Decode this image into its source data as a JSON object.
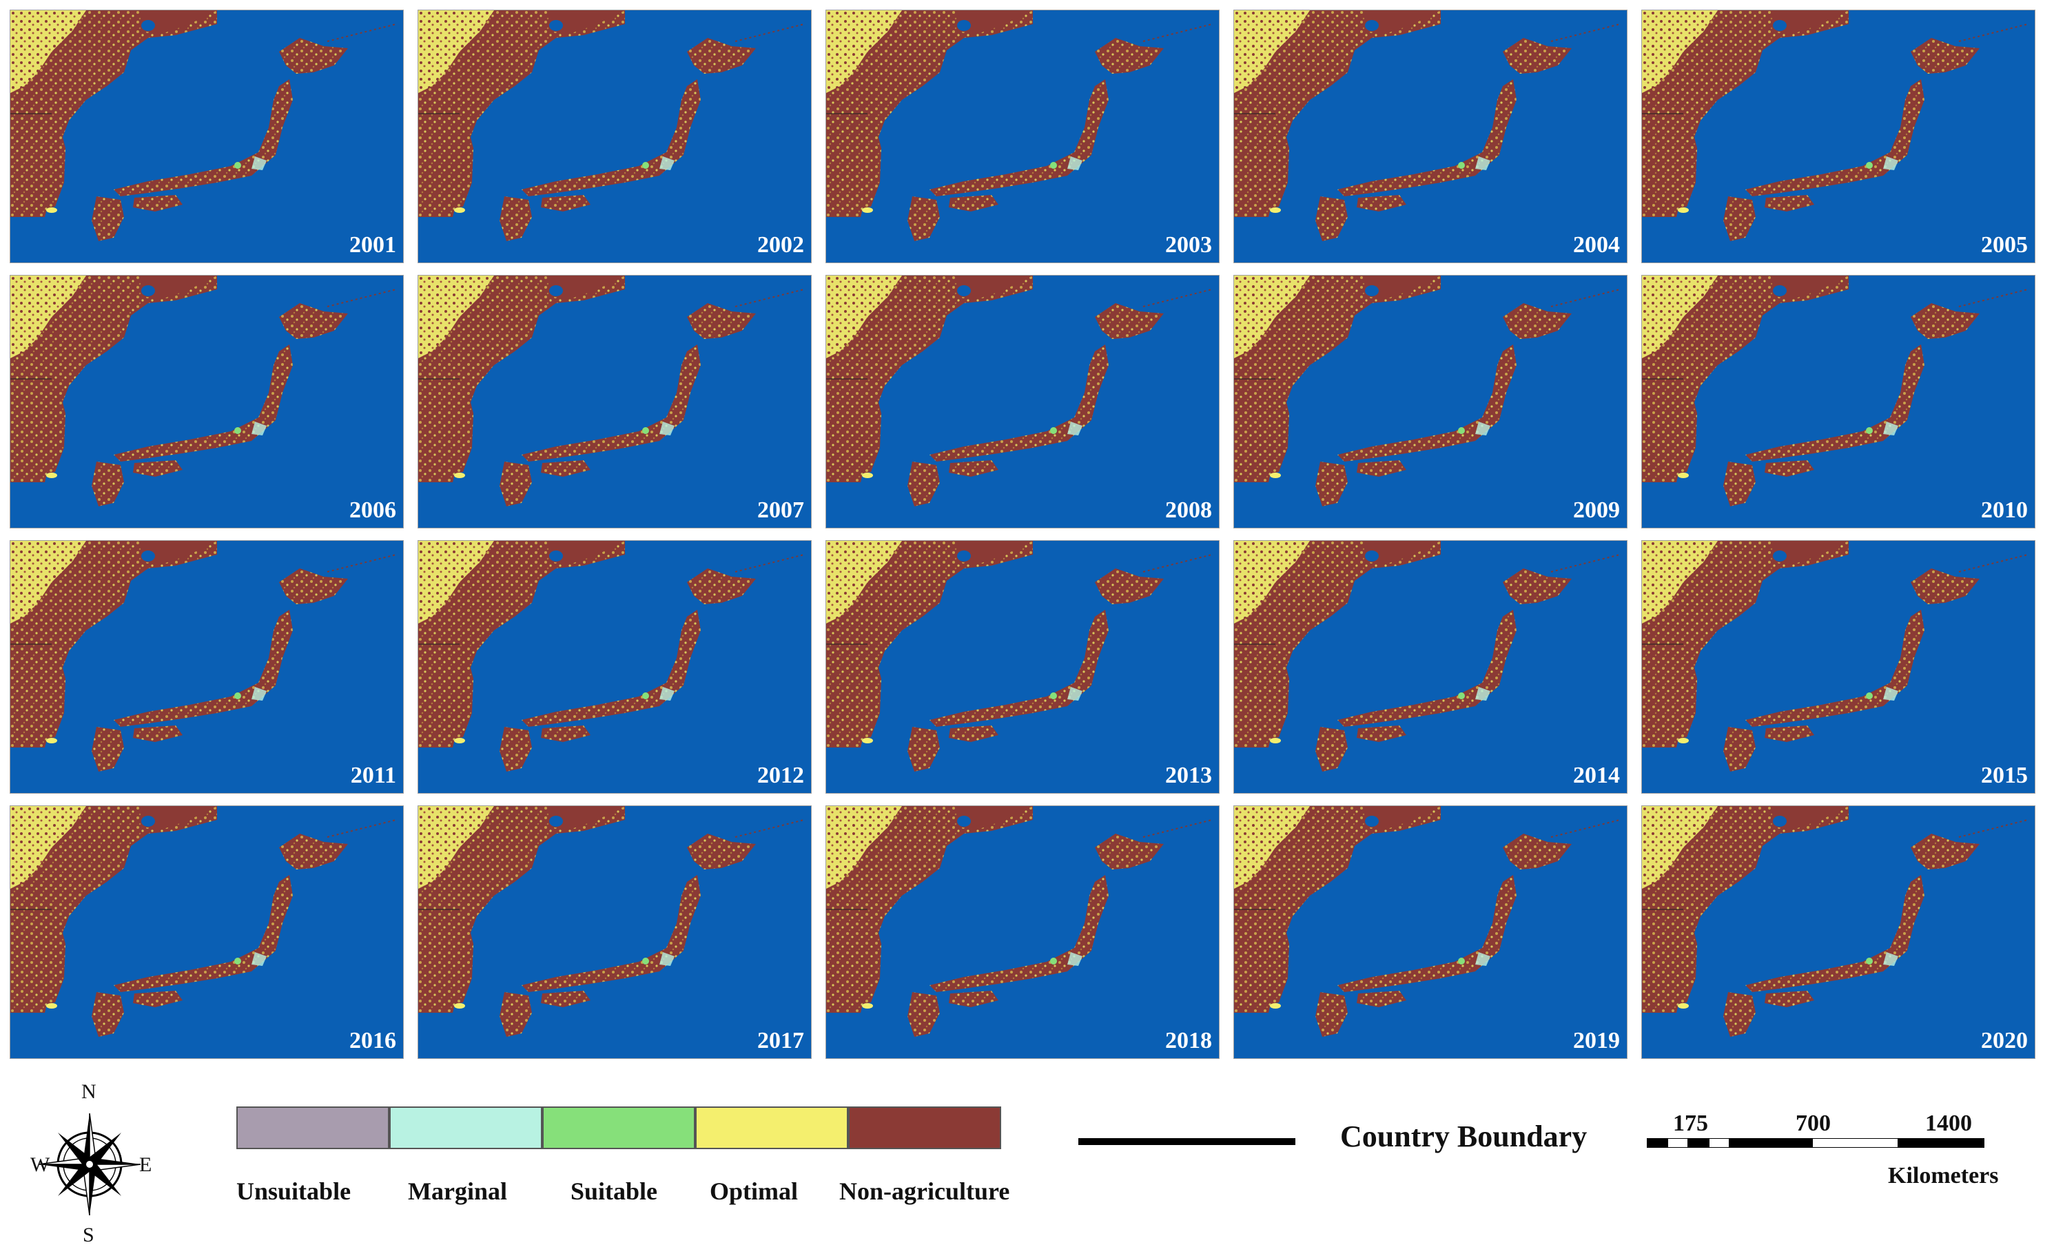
{
  "figure": {
    "panels": [
      "2001",
      "2002",
      "2003",
      "2004",
      "2005",
      "2006",
      "2007",
      "2008",
      "2009",
      "2010",
      "2011",
      "2012",
      "2013",
      "2014",
      "2015",
      "2016",
      "2017",
      "2018",
      "2019",
      "2020"
    ]
  },
  "colors": {
    "sea": "#0a5fb4",
    "unsuitable": "#a89cae",
    "marginal": "#b8f2e2",
    "suitable": "#86e07a",
    "optimal": "#f4ef6e",
    "non_agriculture": "#8b3a35"
  },
  "legend": {
    "classes": [
      {
        "label": "Unsuitable",
        "color": "#a89cae"
      },
      {
        "label": "Marginal",
        "color": "#b8f2e2"
      },
      {
        "label": "Suitable",
        "color": "#86e07a"
      },
      {
        "label": "Optimal",
        "color": "#f4ef6e"
      },
      {
        "label": "Non-agriculture",
        "color": "#8b3a35"
      }
    ],
    "boundary_label": "Country Boundary",
    "compass": {
      "n": "N",
      "s": "S",
      "e": "E",
      "w": "W"
    },
    "scale": {
      "ticks": [
        "175",
        "700",
        "1400"
      ],
      "unit": "Kilometers"
    }
  }
}
